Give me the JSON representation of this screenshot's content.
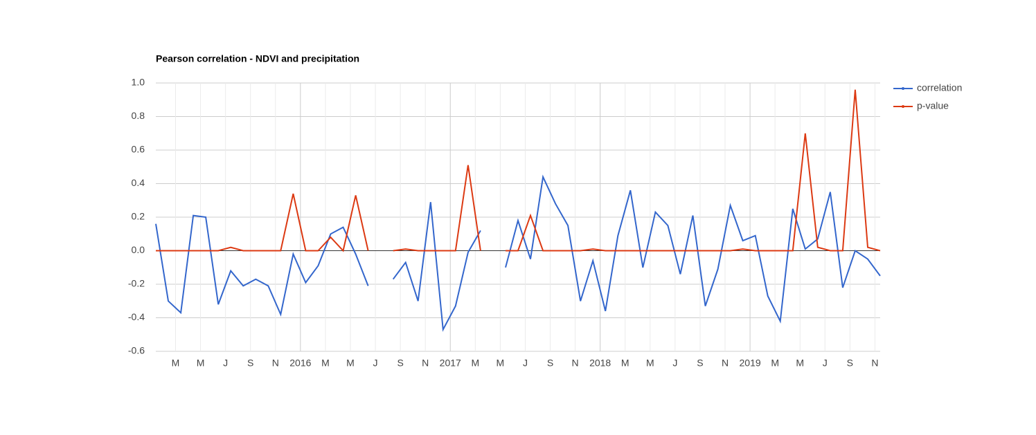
{
  "chart_data": {
    "type": "line",
    "title": "Pearson correlation - NDVI and precipitation",
    "x": [
      "2015-01",
      "2015-02",
      "2015-03",
      "2015-04",
      "2015-05",
      "2015-06",
      "2015-07",
      "2015-08",
      "2015-09",
      "2015-10",
      "2015-11",
      "2015-12",
      "2016-01",
      "2016-02",
      "2016-03",
      "2016-04",
      "2016-05",
      "2016-06",
      "2016-07",
      "2016-08",
      "2016-09",
      "2016-10",
      "2016-11",
      "2016-12",
      "2017-01",
      "2017-02",
      "2017-03",
      "2017-04",
      "2017-05",
      "2017-06",
      "2017-07",
      "2017-08",
      "2017-09",
      "2017-10",
      "2017-11",
      "2017-12",
      "2018-01",
      "2018-02",
      "2018-03",
      "2018-04",
      "2018-05",
      "2018-06",
      "2018-07",
      "2018-08",
      "2018-09",
      "2018-10",
      "2018-11",
      "2018-12",
      "2019-01",
      "2019-02",
      "2019-03",
      "2019-04",
      "2019-05",
      "2019-06",
      "2019-07",
      "2019-08",
      "2019-09",
      "2019-10",
      "2019-11"
    ],
    "series": [
      {
        "name": "correlation",
        "color": "#3366cc",
        "values": [
          0.16,
          -0.3,
          -0.37,
          0.21,
          0.2,
          -0.32,
          -0.12,
          -0.21,
          -0.17,
          -0.21,
          -0.38,
          -0.02,
          -0.19,
          -0.09,
          0.1,
          0.14,
          -0.02,
          -0.21,
          null,
          -0.17,
          -0.07,
          -0.3,
          0.29,
          -0.47,
          -0.33,
          -0.01,
          0.12,
          null,
          -0.1,
          0.18,
          -0.05,
          0.44,
          0.28,
          0.15,
          -0.3,
          -0.06,
          -0.36,
          0.09,
          0.36,
          -0.1,
          0.23,
          0.15,
          -0.14,
          0.21,
          -0.33,
          -0.11,
          0.27,
          0.06,
          0.09,
          -0.27,
          -0.42,
          0.25,
          0.01,
          0.07,
          0.35,
          -0.22,
          0.0,
          -0.05,
          -0.15
        ]
      },
      {
        "name": "p-value",
        "color": "#dc3912",
        "values": [
          0,
          0,
          0,
          0,
          0,
          0,
          0.02,
          0,
          0,
          0,
          0,
          0.34,
          0,
          0,
          0.08,
          0,
          0.33,
          0,
          null,
          0,
          0.01,
          0,
          0,
          0,
          0,
          0.51,
          0,
          null,
          0,
          0,
          0.21,
          0,
          0,
          0,
          0,
          0.01,
          0,
          0,
          0,
          0,
          0,
          0,
          0,
          0,
          0,
          0,
          0,
          0.01,
          0,
          0,
          0,
          0,
          0.7,
          0.02,
          0,
          0,
          0.96,
          0.02,
          0
        ]
      }
    ],
    "ylim": [
      -0.6,
      1.0
    ],
    "yticks": [
      {
        "value": 1.0,
        "label": "1.0"
      },
      0.8,
      0.6,
      0.4,
      0.2,
      {
        "value": 0.0,
        "label": "0.0"
      },
      -0.2,
      -0.4,
      -0.6
    ],
    "xticks": [
      {
        "value": "2015-03",
        "label": "M"
      },
      {
        "value": "2015-05",
        "label": "M"
      },
      {
        "value": "2015-07",
        "label": "J"
      },
      {
        "value": "2015-09",
        "label": "S"
      },
      {
        "value": "2015-11",
        "label": "N"
      },
      {
        "value": "2016-01",
        "label": "2016"
      },
      {
        "value": "2016-03",
        "label": "M"
      },
      {
        "value": "2016-05",
        "label": "M"
      },
      {
        "value": "2016-07",
        "label": "J"
      },
      {
        "value": "2016-09",
        "label": "S"
      },
      {
        "value": "2016-11",
        "label": "N"
      },
      {
        "value": "2017-01",
        "label": "2017"
      },
      {
        "value": "2017-03",
        "label": "M"
      },
      {
        "value": "2017-05",
        "label": "M"
      },
      {
        "value": "2017-07",
        "label": "J"
      },
      {
        "value": "2017-09",
        "label": "S"
      },
      {
        "value": "2017-11",
        "label": "N"
      },
      {
        "value": "2018-01",
        "label": "2018"
      },
      {
        "value": "2018-03",
        "label": "M"
      },
      {
        "value": "2018-05",
        "label": "M"
      },
      {
        "value": "2018-07",
        "label": "J"
      },
      {
        "value": "2018-09",
        "label": "S"
      },
      {
        "value": "2018-11",
        "label": "N"
      },
      {
        "value": "2019-01",
        "label": "2019"
      },
      {
        "value": "2019-03",
        "label": "M"
      },
      {
        "value": "2019-05",
        "label": "M"
      },
      {
        "value": "2019-07",
        "label": "J"
      },
      {
        "value": "2019-09",
        "label": "S"
      },
      {
        "value": "2019-11",
        "label": "N"
      }
    ],
    "grid": true,
    "legend": "right"
  }
}
